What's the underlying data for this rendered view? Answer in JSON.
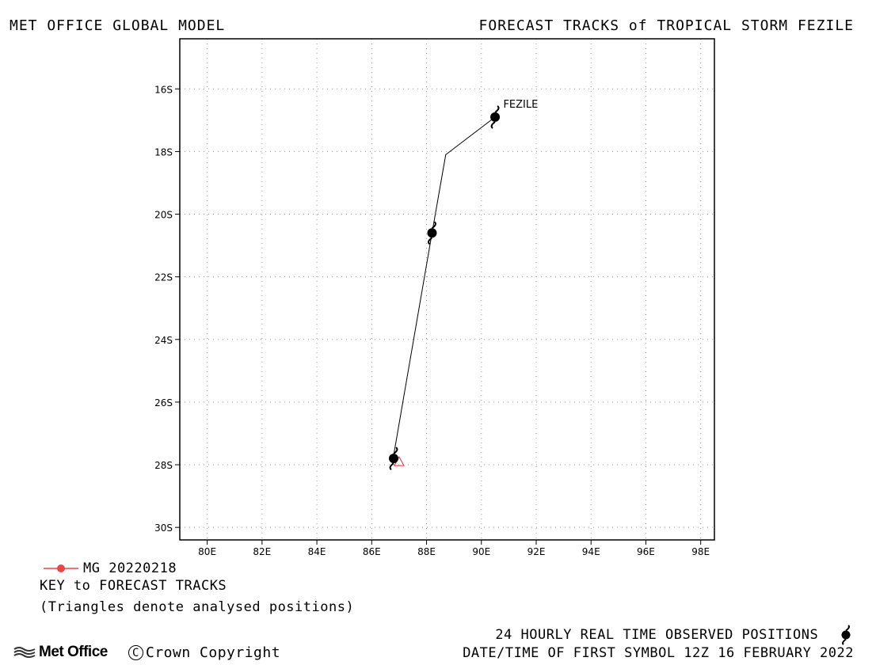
{
  "header": {
    "left_title": "MET OFFICE GLOBAL MODEL",
    "right_title": "FORECAST TRACKS of TROPICAL STORM FEZILE"
  },
  "chart_data": {
    "type": "map-track",
    "x_range": [
      79,
      98.5
    ],
    "y_range": [
      -30.4,
      -14.4
    ],
    "x_ticks": [
      80,
      82,
      84,
      86,
      88,
      90,
      92,
      94,
      96,
      98
    ],
    "x_tick_labels": [
      "80E",
      "82E",
      "84E",
      "86E",
      "88E",
      "90E",
      "92E",
      "94E",
      "96E",
      "98E"
    ],
    "y_ticks": [
      -16,
      -18,
      -20,
      -22,
      -24,
      -26,
      -28,
      -30
    ],
    "y_tick_labels": [
      "16S",
      "18S",
      "20S",
      "22S",
      "24S",
      "26S",
      "28S",
      "30S"
    ],
    "grid": true,
    "forecast_track": {
      "name": "MG 20220218",
      "points": [
        [
          86.8,
          -27.7
        ],
        [
          88.2,
          -20.6
        ],
        [
          88.7,
          -18.1
        ],
        [
          90.5,
          -16.9
        ]
      ]
    },
    "observed_positions": [
      [
        86.8,
        -27.8
      ],
      [
        88.2,
        -20.6
      ],
      [
        90.5,
        -16.9
      ]
    ],
    "analysed_positions": [
      [
        87.0,
        -27.9
      ]
    ],
    "storm_label": {
      "text": "FEZILE",
      "lon": 90.8,
      "lat": -16.5
    },
    "colors": {
      "track": "#000000",
      "analysed": "#e03030",
      "legend_marker": "#ee4444"
    }
  },
  "legend": {
    "track_label": "MG 20220218",
    "key_title": "KEY to FORECAST TRACKS",
    "key_note": "(Triangles denote analysed positions)"
  },
  "footer": {
    "observed_label": "24 HOURLY REAL TIME OBSERVED POSITIONS",
    "first_symbol": "DATE/TIME OF FIRST SYMBOL 12Z 16 FEBRUARY 2022",
    "logo_text": "Met Office",
    "copyright_symbol": "C",
    "copyright_text": "Crown Copyright"
  }
}
